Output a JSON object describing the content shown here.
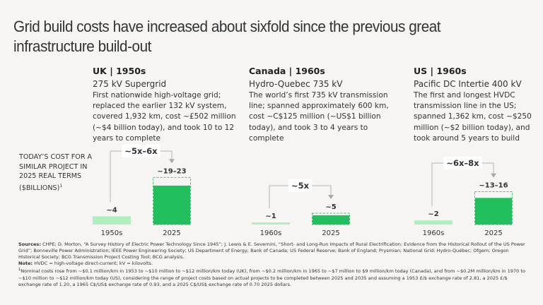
{
  "title": "Grid build costs have increased about sixfold since the previous great infrastructure build-out",
  "y_axis_label": "TODAY’S COST FOR A SIMILAR PROJECT IN 2025 REAL TERMS ($BILLIONS)",
  "y_axis_label_footnote": "1",
  "colors": {
    "historical_bar": "#aeeebf",
    "current_bar": "#21bf5e",
    "range_outline": "#21bf5e",
    "connector": "#b5b5b5",
    "multiplier_box": "#ffffff",
    "background": "#f6f5f3"
  },
  "projects": [
    {
      "heading": "UK | 1950s",
      "name": "275 kV Supergrid",
      "description": "First nationwide high-voltage grid; replaced the earlier 132 kV system, covered 1,932 km, cost ~£502 million (~$4 billion today), and took 10 to 12 years to complete"
    },
    {
      "heading": "Canada | 1960s",
      "name": "Hydro-Quebec 735 kV",
      "description": "The world’s first 735 kV transmission line; spanned approximately 600 km, cost ~C$125 million (~US$1 billion today), and took 3 to 4 years to complete"
    },
    {
      "heading": "US | 1960s",
      "name": "Pacific DC Intertie 400 kV",
      "description": "The first and longest HVDC transmission line in the US; spanned 1,362 km, cost ~$250 million (~$2 billion today), and took around 5 years to build"
    }
  ],
  "chart_data": {
    "type": "bar",
    "title": "Today's cost for a similar project in 2025 real terms ($billions)",
    "ylabel": "$billions (2025 real terms)",
    "ylim": [
      0,
      25
    ],
    "grid": false,
    "groups": [
      {
        "name": "UK",
        "multiplier_label": "~5x–6x",
        "bars": [
          {
            "category": "1950s",
            "value": 4,
            "label": "~4",
            "kind": "historical"
          },
          {
            "category": "2025",
            "value_low": 19,
            "value_high": 23,
            "label": "~19–23",
            "kind": "current"
          }
        ]
      },
      {
        "name": "Canada",
        "multiplier_label": "~5x",
        "bars": [
          {
            "category": "1960s",
            "value": 1,
            "label": "~1",
            "kind": "historical"
          },
          {
            "category": "2025",
            "value_low": 4.5,
            "value_high": 5.5,
            "label": "~5",
            "kind": "current"
          }
        ]
      },
      {
        "name": "US",
        "multiplier_label": "~6x–8x",
        "bars": [
          {
            "category": "1960s",
            "value": 2,
            "label": "~2",
            "kind": "historical"
          },
          {
            "category": "2025",
            "value_low": 13,
            "value_high": 16,
            "label": "~13–16",
            "kind": "current"
          }
        ]
      }
    ]
  },
  "notes": {
    "sources_label": "Sources:",
    "sources_text": "CHPE; D. Morton, “A Survey History of Electric Power Technology Since 1945”; J. Lewis & E. Severnini, “Short- and Long-Run Impacts of Rural Electrification: Evidence from the Historical Rollout of the US Power Grid”; Bonneville Power Administration; IEEE Power Engineering Society; US Department of Energy; Bank of Canada; US Federal Reserve; Bank of England; Prysmian; National Grid; Hydro-Québec; Ofgem; Oregon Historical Society; BCG Transmission Project Costing Tool; BCG analysis.",
    "note_label": "Note:",
    "note_text": "HVDC = high-voltage direct-current; kV = kilovolts.",
    "footnote_mark": "1",
    "footnote_text": "Nominal costs rose from ~$0.1 million/km in 1953 to ~$10 million to ~$12 million/km today (UK), from ~$0.2 million/km in 1965 to ~$7 million to $9 million/km today (Canada), and from ~$0.2M million/km in 1970 to ~$10 million to ~$12 million/km today (US), considering the range of project costs based on actual projects to be completed between 2025 and 2035 and assuming a 1953 £/$ exchange rate of 2.81, a 2025 £/$ exchange rate of 1.20, a 1965 C$/US$ exchange rate of 0.93, and a 2025 C$/US$ exchange rate of 0.70 2025 dollars."
  }
}
